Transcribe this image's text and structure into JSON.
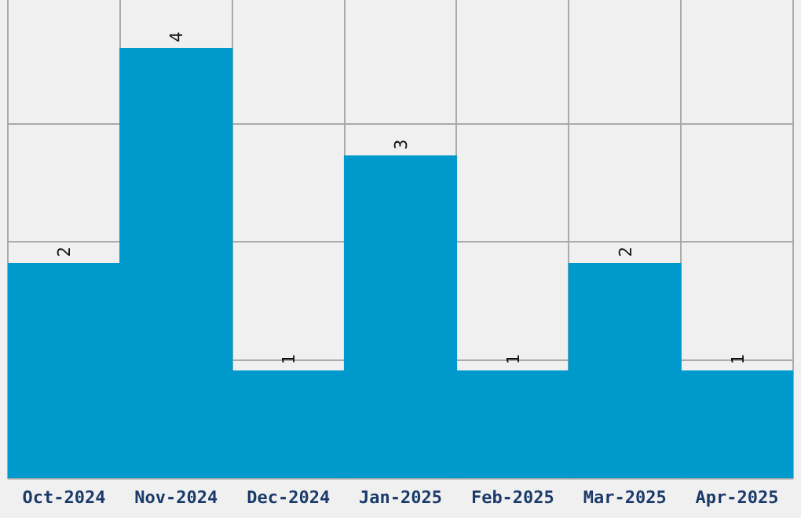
{
  "chart_data": {
    "type": "bar",
    "categories": [
      "Oct-2024",
      "Nov-2024",
      "Dec-2024",
      "Jan-2025",
      "Feb-2025",
      "Mar-2025",
      "Apr-2025"
    ],
    "values": [
      2,
      4,
      1,
      3,
      1,
      2,
      1
    ],
    "color": "#0099cc",
    "ylim": [
      0,
      4.45
    ],
    "yticks": [
      {
        "value": 0,
        "label": null
      },
      {
        "value": 1.1,
        "label": null
      },
      {
        "value": 2.2,
        "label": null
      },
      {
        "value": 3.3,
        "label": null
      }
    ],
    "grid": true,
    "data_labels": true,
    "tick_labels": "x",
    "legend": false
  }
}
